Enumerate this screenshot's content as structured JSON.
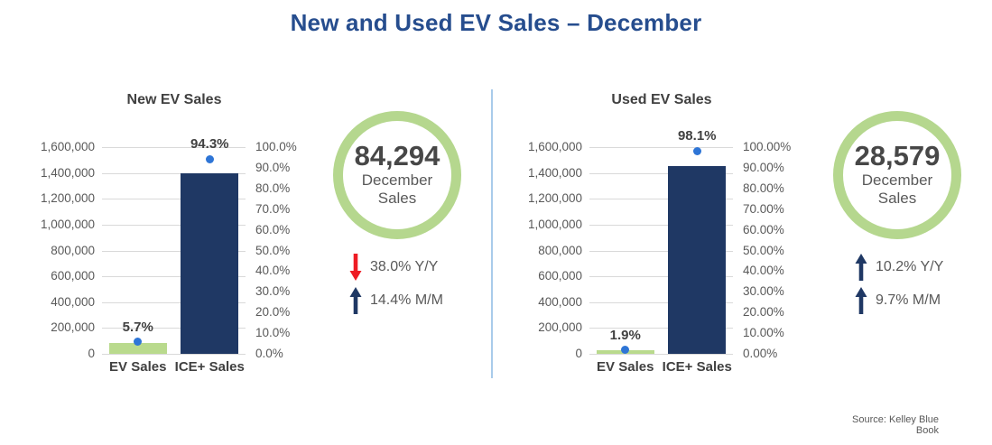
{
  "header": {
    "title": "New and Used EV Sales – December"
  },
  "footer": {
    "source": "Source: Kelley Blue Book"
  },
  "colors": {
    "title_blue": "#264d8e",
    "navy_bar": "#1f3864",
    "green_bar": "#b9da8d",
    "badge_ring_green": "#b5d78e",
    "dot_blue": "#2e75d6",
    "red_arrow": "#ee1c24",
    "navy_arrow": "#1f3864",
    "axis_text": "#595959",
    "label_text": "#404040",
    "gridline": "#d9d9d9",
    "divider_blue": "#a9cbea"
  },
  "panels": [
    {
      "badge": {
        "value": "84,294",
        "label_line1": "December",
        "label_line2": "Sales"
      },
      "stats": [
        {
          "arrow": "down",
          "color": "#ee1c24",
          "text": "38.0% Y/Y"
        },
        {
          "arrow": "up",
          "color": "#1f3864",
          "text": "14.4% M/M"
        }
      ]
    },
    {
      "badge": {
        "value": "28,579",
        "label_line1": "December",
        "label_line2": "Sales"
      },
      "stats": [
        {
          "arrow": "up",
          "color": "#1f3864",
          "text": "10.2% Y/Y"
        },
        {
          "arrow": "up",
          "color": "#1f3864",
          "text": "9.7% M/M"
        }
      ]
    }
  ],
  "chart_data": [
    {
      "type": "bar",
      "title": "New EV Sales",
      "categories": [
        "EV Sales",
        "ICE+ Sales"
      ],
      "series": [
        {
          "role": "bars",
          "axis": "left",
          "values": [
            84294,
            1400000
          ],
          "colors": [
            "#b9da8d",
            "#1f3864"
          ]
        },
        {
          "role": "dots",
          "axis": "right",
          "values": [
            5.7,
            94.3
          ],
          "labels": [
            "5.7%",
            "94.3%"
          ],
          "color": "#2e75d6"
        }
      ],
      "left_axis": {
        "min": 0,
        "max": 1600000,
        "step": 200000,
        "ticks": [
          "1,600,000",
          "1,400,000",
          "1,200,000",
          "1,000,000",
          "800,000",
          "600,000",
          "400,000",
          "200,000",
          "0"
        ]
      },
      "right_axis": {
        "min": 0,
        "max": 100,
        "step": 10,
        "ticks": [
          "100.0%",
          "90.0%",
          "80.0%",
          "70.0%",
          "60.0%",
          "50.0%",
          "40.0%",
          "30.0%",
          "20.0%",
          "10.0%",
          "0.0%"
        ]
      },
      "grid": true,
      "legend": "none"
    },
    {
      "type": "bar",
      "title": "Used EV Sales",
      "categories": [
        "EV Sales",
        "ICE+ Sales"
      ],
      "series": [
        {
          "role": "bars",
          "axis": "left",
          "values": [
            28579,
            1450000
          ],
          "colors": [
            "#b9da8d",
            "#1f3864"
          ]
        },
        {
          "role": "dots",
          "axis": "right",
          "values": [
            1.9,
            98.1
          ],
          "labels": [
            "1.9%",
            "98.1%"
          ],
          "color": "#2e75d6"
        }
      ],
      "left_axis": {
        "min": 0,
        "max": 1600000,
        "step": 200000,
        "ticks": [
          "1,600,000",
          "1,400,000",
          "1,200,000",
          "1,000,000",
          "800,000",
          "600,000",
          "400,000",
          "200,000",
          "0"
        ]
      },
      "right_axis": {
        "min": 0,
        "max": 100,
        "step": 10,
        "ticks": [
          "100.00%",
          "90.00%",
          "80.00%",
          "70.00%",
          "60.00%",
          "50.00%",
          "40.00%",
          "30.00%",
          "20.00%",
          "10.00%",
          "0.00%"
        ]
      },
      "grid": true,
      "legend": "none"
    }
  ]
}
